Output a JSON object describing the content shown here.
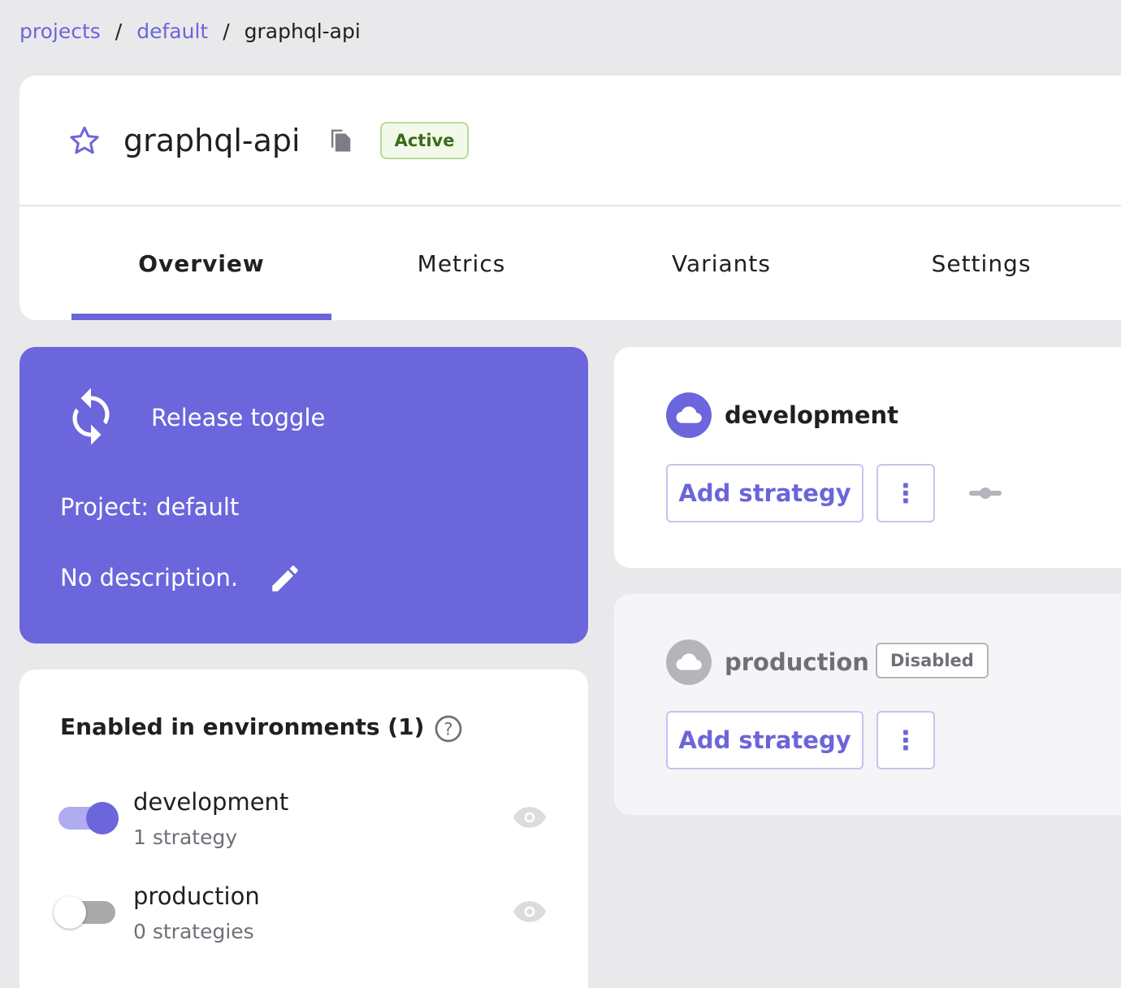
{
  "breadcrumb": {
    "items": [
      "projects",
      "default"
    ],
    "current": "graphql-api"
  },
  "header": {
    "title": "graphql-api",
    "status": "Active"
  },
  "tabs": [
    "Overview",
    "Metrics",
    "Variants",
    "Settings"
  ],
  "info": {
    "type": "Release toggle",
    "project": "Project: default",
    "description": "No description."
  },
  "enabled": {
    "title": "Enabled in environments (1)",
    "envs": [
      {
        "name": "development",
        "strategies": "1 strategy",
        "on": true
      },
      {
        "name": "production",
        "strategies": "0 strategies",
        "on": false
      }
    ]
  },
  "environments": [
    {
      "name": "development",
      "add": "Add strategy"
    },
    {
      "name": "production",
      "badge": "Disabled",
      "add": "Add strategy"
    }
  ],
  "colors": {
    "accent": "#6c65d9"
  }
}
